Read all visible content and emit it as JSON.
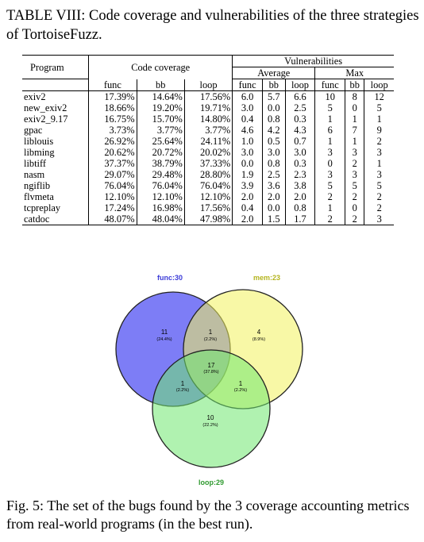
{
  "table_caption": "TABLE VIII: Code coverage and vulnerabilities of the three strategies of TortoiseFuzz.",
  "headers": {
    "program": "Program",
    "code_coverage": "Code coverage",
    "vulnerabilities": "Vulnerabilities",
    "average": "Average",
    "max": "Max",
    "func": "func",
    "bb": "bb",
    "loop": "loop"
  },
  "rows": [
    {
      "program": "exiv2",
      "cov": [
        "17.39%",
        "14.64%",
        "17.56%"
      ],
      "avg": [
        "6.0",
        "5.7",
        "6.6"
      ],
      "max": [
        "10",
        "8",
        "12"
      ]
    },
    {
      "program": "new_exiv2",
      "cov": [
        "18.66%",
        "19.20%",
        "19.71%"
      ],
      "avg": [
        "3.0",
        "0.0",
        "2.5"
      ],
      "max": [
        "5",
        "0",
        "5"
      ]
    },
    {
      "program": "exiv2_9.17",
      "cov": [
        "16.75%",
        "15.70%",
        "14.80%"
      ],
      "avg": [
        "0.4",
        "0.8",
        "0.3"
      ],
      "max": [
        "1",
        "1",
        "1"
      ]
    },
    {
      "program": "gpac",
      "cov": [
        "3.73%",
        "3.77%",
        "3.77%"
      ],
      "avg": [
        "4.6",
        "4.2",
        "4.3"
      ],
      "max": [
        "6",
        "7",
        "9"
      ]
    },
    {
      "program": "liblouis",
      "cov": [
        "26.92%",
        "25.64%",
        "24.11%"
      ],
      "avg": [
        "1.0",
        "0.5",
        "0.7"
      ],
      "max": [
        "1",
        "1",
        "2"
      ]
    },
    {
      "program": "libming",
      "cov": [
        "20.62%",
        "20.72%",
        "20.02%"
      ],
      "avg": [
        "3.0",
        "3.0",
        "3.0"
      ],
      "max": [
        "3",
        "3",
        "3"
      ]
    },
    {
      "program": "libtiff",
      "cov": [
        "37.37%",
        "38.79%",
        "37.33%"
      ],
      "avg": [
        "0.0",
        "0.8",
        "0.3"
      ],
      "max": [
        "0",
        "2",
        "1"
      ]
    },
    {
      "program": "nasm",
      "cov": [
        "29.07%",
        "29.48%",
        "28.80%"
      ],
      "avg": [
        "1.9",
        "2.5",
        "2.3"
      ],
      "max": [
        "3",
        "3",
        "3"
      ]
    },
    {
      "program": "ngiflib",
      "cov": [
        "76.04%",
        "76.04%",
        "76.04%"
      ],
      "avg": [
        "3.9",
        "3.6",
        "3.8"
      ],
      "max": [
        "5",
        "5",
        "5"
      ]
    },
    {
      "program": "flvmeta",
      "cov": [
        "12.10%",
        "12.10%",
        "12.10%"
      ],
      "avg": [
        "2.0",
        "2.0",
        "2.0"
      ],
      "max": [
        "2",
        "2",
        "2"
      ]
    },
    {
      "program": "tcpreplay",
      "cov": [
        "17.24%",
        "16.98%",
        "17.56%"
      ],
      "avg": [
        "0.4",
        "0.0",
        "0.8"
      ],
      "max": [
        "1",
        "0",
        "2"
      ]
    },
    {
      "program": "catdoc",
      "cov": [
        "48.07%",
        "48.04%",
        "47.98%"
      ],
      "avg": [
        "2.0",
        "1.5",
        "1.7"
      ],
      "max": [
        "2",
        "2",
        "3"
      ]
    }
  ],
  "venn": {
    "labels": {
      "func": "func:30",
      "mem": "mem:23",
      "loop": "loop:29"
    },
    "regions": {
      "func_only": {
        "count": "11",
        "pct": "(24.4%)"
      },
      "mem_only": {
        "count": "4",
        "pct": "(8.9%)"
      },
      "loop_only": {
        "count": "10",
        "pct": "(22.2%)"
      },
      "func_mem": {
        "count": "1",
        "pct": "(2.2%)"
      },
      "func_loop": {
        "count": "1",
        "pct": "(2.2%)"
      },
      "mem_loop": {
        "count": "1",
        "pct": "(2.2%)"
      },
      "all": {
        "count": "17",
        "pct": "(37.8%)"
      }
    },
    "colors": {
      "func": "#5b5bf0",
      "mem": "#f3f35a",
      "loop": "#73e873",
      "func_label": "#3b3bd8",
      "mem_label": "#b4b41e",
      "loop_label": "#2f9a2f"
    }
  },
  "figure_caption": "Fig. 5: The set of the bugs found by the 3 coverage accounting metrics from real-world programs (in the best run)."
}
